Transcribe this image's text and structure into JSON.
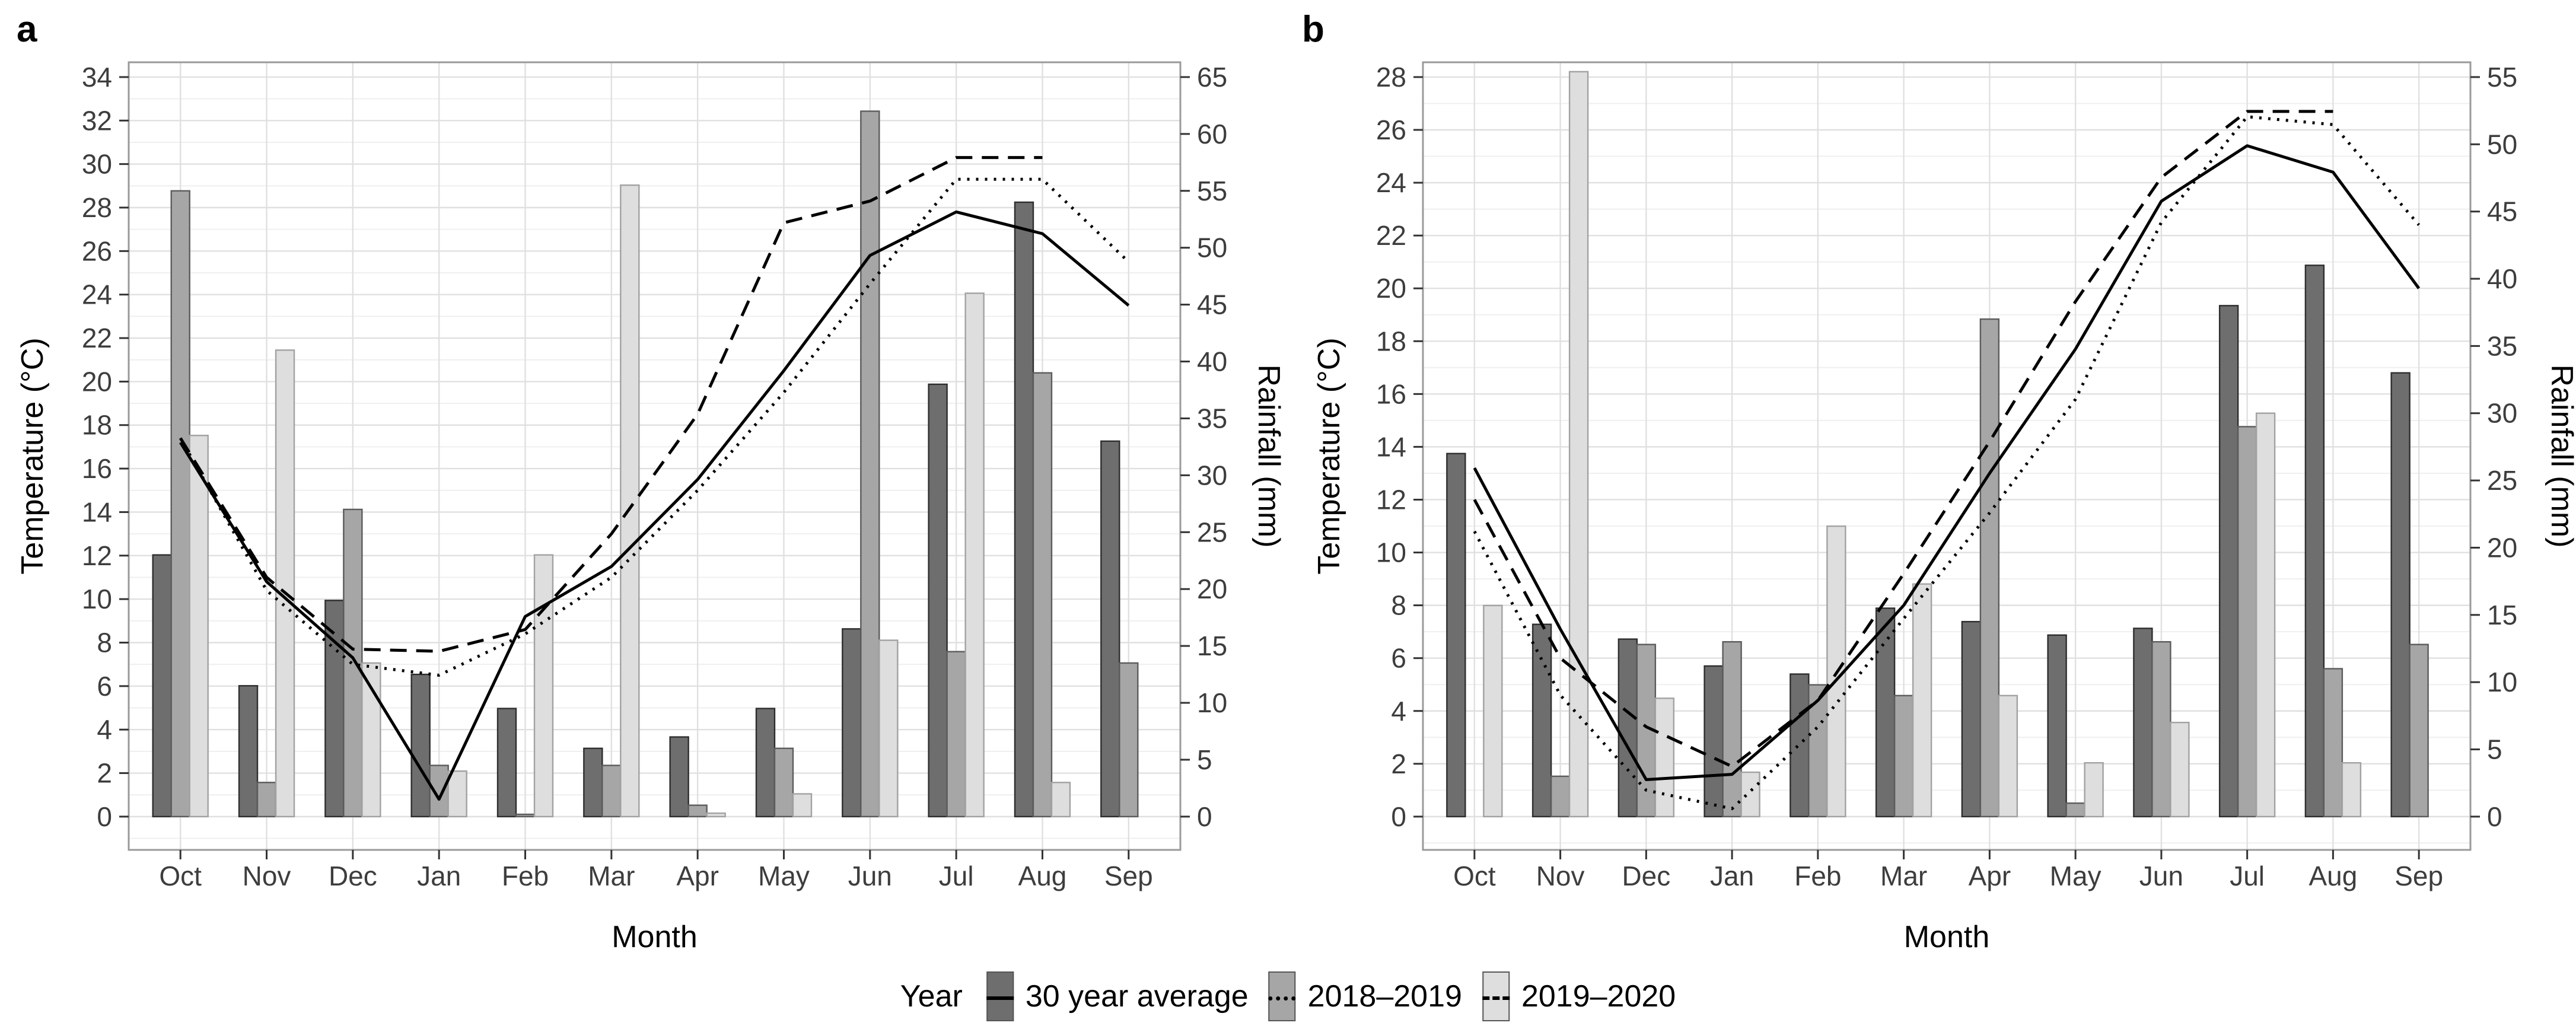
{
  "figure": {
    "background": "#ffffff",
    "description": "Two-panel climate chart: monthly rainfall bars and temperature lines, Oct to Sep"
  },
  "panels": [
    {
      "letter": "a"
    },
    {
      "letter": "b"
    }
  ],
  "colors": {
    "bar_30yr_fill": "#6e6e6e",
    "bar_30yr_edge": "#2e2e2e",
    "bar_2018_2019_fill": "#a6a6a6",
    "bar_2018_2019_edge": "#5c5c5c",
    "bar_2019_2020_fill": "#dedede",
    "bar_2019_2020_edge": "#a2a2a2",
    "line_color": "#000000",
    "grid_major": "#e0e0e0",
    "grid_minor": "#efefef",
    "panel_border": "#9a9a9a",
    "tick_color": "#333333",
    "tick_label_color": "#3d3d3d"
  },
  "legend": {
    "title": "Year",
    "items": [
      {
        "label": "30 year average",
        "swatch": "#6e6e6e",
        "line_style": "solid"
      },
      {
        "label": "2018–2019",
        "swatch": "#a6a6a6",
        "line_style": "dotted"
      },
      {
        "label": "2019–2020",
        "swatch": "#dedede",
        "line_style": "dashed"
      }
    ]
  },
  "chart_data": [
    {
      "panel": "a",
      "panel_label": "a",
      "type": "bar+line",
      "categories": [
        "Oct",
        "Nov",
        "Dec",
        "Jan",
        "Feb",
        "Mar",
        "Apr",
        "May",
        "Jun",
        "Jul",
        "Aug",
        "Sep"
      ],
      "axes": {
        "left": {
          "label": "Temperature (°C)",
          "min": 0,
          "max": 34,
          "step": 2
        },
        "right": {
          "label": "Rainfall (mm)",
          "min": 0,
          "max": 65,
          "step": 5
        },
        "x_label": "Month",
        "grid": true
      },
      "bar_series": [
        {
          "key": "30yr",
          "name": "30 year average",
          "axis": "right",
          "unit": "mm",
          "values_mm": [
            23,
            11.5,
            19,
            12.5,
            9.5,
            6,
            7,
            9.5,
            16.5,
            38,
            54,
            33
          ]
        },
        {
          "key": "2018-2019",
          "name": "2018–2019",
          "axis": "right",
          "unit": "mm",
          "values_mm": [
            55,
            3,
            27,
            4.5,
            0.2,
            4.5,
            1,
            6,
            62,
            14.5,
            39,
            13.5
          ]
        },
        {
          "key": "2019-2020",
          "name": "2019–2020",
          "axis": "right",
          "unit": "mm",
          "values_mm": [
            33.5,
            41,
            13.5,
            4,
            23,
            55.5,
            0.3,
            2,
            15.5,
            46,
            3,
            0
          ]
        }
      ],
      "line_series": [
        {
          "key": "30yr",
          "name": "30 year average",
          "style": "solid",
          "axis": "left",
          "unit": "°C",
          "values_c": [
            17.2,
            10.8,
            7.3,
            0.8,
            9.2,
            11.5,
            15.5,
            20.5,
            25.8,
            27.8,
            26.8,
            23.5
          ]
        },
        {
          "key": "2018-2019",
          "name": "2018–2019",
          "style": "dotted",
          "axis": "left",
          "unit": "°C",
          "values_c": [
            17.4,
            10.4,
            7.0,
            6.5,
            8.4,
            11.0,
            15.0,
            19.5,
            24.5,
            29.3,
            29.3,
            25.5
          ]
        },
        {
          "key": "2019-2020",
          "name": "2019–2020",
          "style": "dashed",
          "axis": "left",
          "unit": "°C",
          "values_c": [
            17.4,
            11.0,
            7.7,
            7.6,
            8.6,
            13.0,
            18.5,
            27.3,
            28.3,
            30.3,
            30.3,
            null
          ]
        }
      ]
    },
    {
      "panel": "b",
      "panel_label": "b",
      "type": "bar+line",
      "categories": [
        "Oct",
        "Nov",
        "Dec",
        "Jan",
        "Feb",
        "Mar",
        "Apr",
        "May",
        "Jun",
        "Jul",
        "Aug",
        "Sep"
      ],
      "axes": {
        "left": {
          "label": "Temperature (°C)",
          "min": 0,
          "max": 28,
          "step": 2
        },
        "right": {
          "label": "Rainfall (mm)",
          "min": 0,
          "max": 55,
          "step": 5
        },
        "x_label": "Month",
        "grid": true
      },
      "bar_series": [
        {
          "key": "30yr",
          "name": "30 year average",
          "axis": "right",
          "unit": "mm",
          "values_mm": [
            27,
            14.3,
            13.2,
            11.2,
            10.6,
            15.5,
            14.5,
            13.5,
            14,
            38,
            41,
            33
          ]
        },
        {
          "key": "2018-2019",
          "name": "2018–2019",
          "axis": "right",
          "unit": "mm",
          "values_mm": [
            0,
            3,
            12.8,
            13,
            9.8,
            9,
            37,
            1,
            13,
            29,
            11,
            12.8
          ]
        },
        {
          "key": "2019-2020",
          "name": "2019–2020",
          "axis": "right",
          "unit": "mm",
          "values_mm": [
            15.7,
            55.4,
            8.8,
            3.3,
            21.6,
            17.3,
            9,
            4,
            7,
            30,
            4,
            0
          ]
        }
      ],
      "line_series": [
        {
          "key": "30yr",
          "name": "30 year average",
          "style": "solid",
          "axis": "left",
          "unit": "°C",
          "values_c": [
            13.2,
            7.1,
            1.4,
            1.6,
            4.4,
            8.0,
            13.0,
            17.7,
            23.3,
            25.4,
            24.4,
            20.0
          ]
        },
        {
          "key": "2018-2019",
          "name": "2018–2019",
          "style": "dotted",
          "axis": "left",
          "unit": "°C",
          "values_c": [
            10.8,
            4.6,
            1.0,
            0.3,
            3.4,
            7.5,
            11.5,
            15.8,
            22.5,
            26.5,
            26.2,
            22.4
          ]
        },
        {
          "key": "2019-2020",
          "name": "2019–2020",
          "style": "dashed",
          "axis": "left",
          "unit": "°C",
          "values_c": [
            12.0,
            6.0,
            3.4,
            1.9,
            4.4,
            9.2,
            14.2,
            19.5,
            24.2,
            26.7,
            26.7,
            null
          ]
        }
      ]
    }
  ]
}
